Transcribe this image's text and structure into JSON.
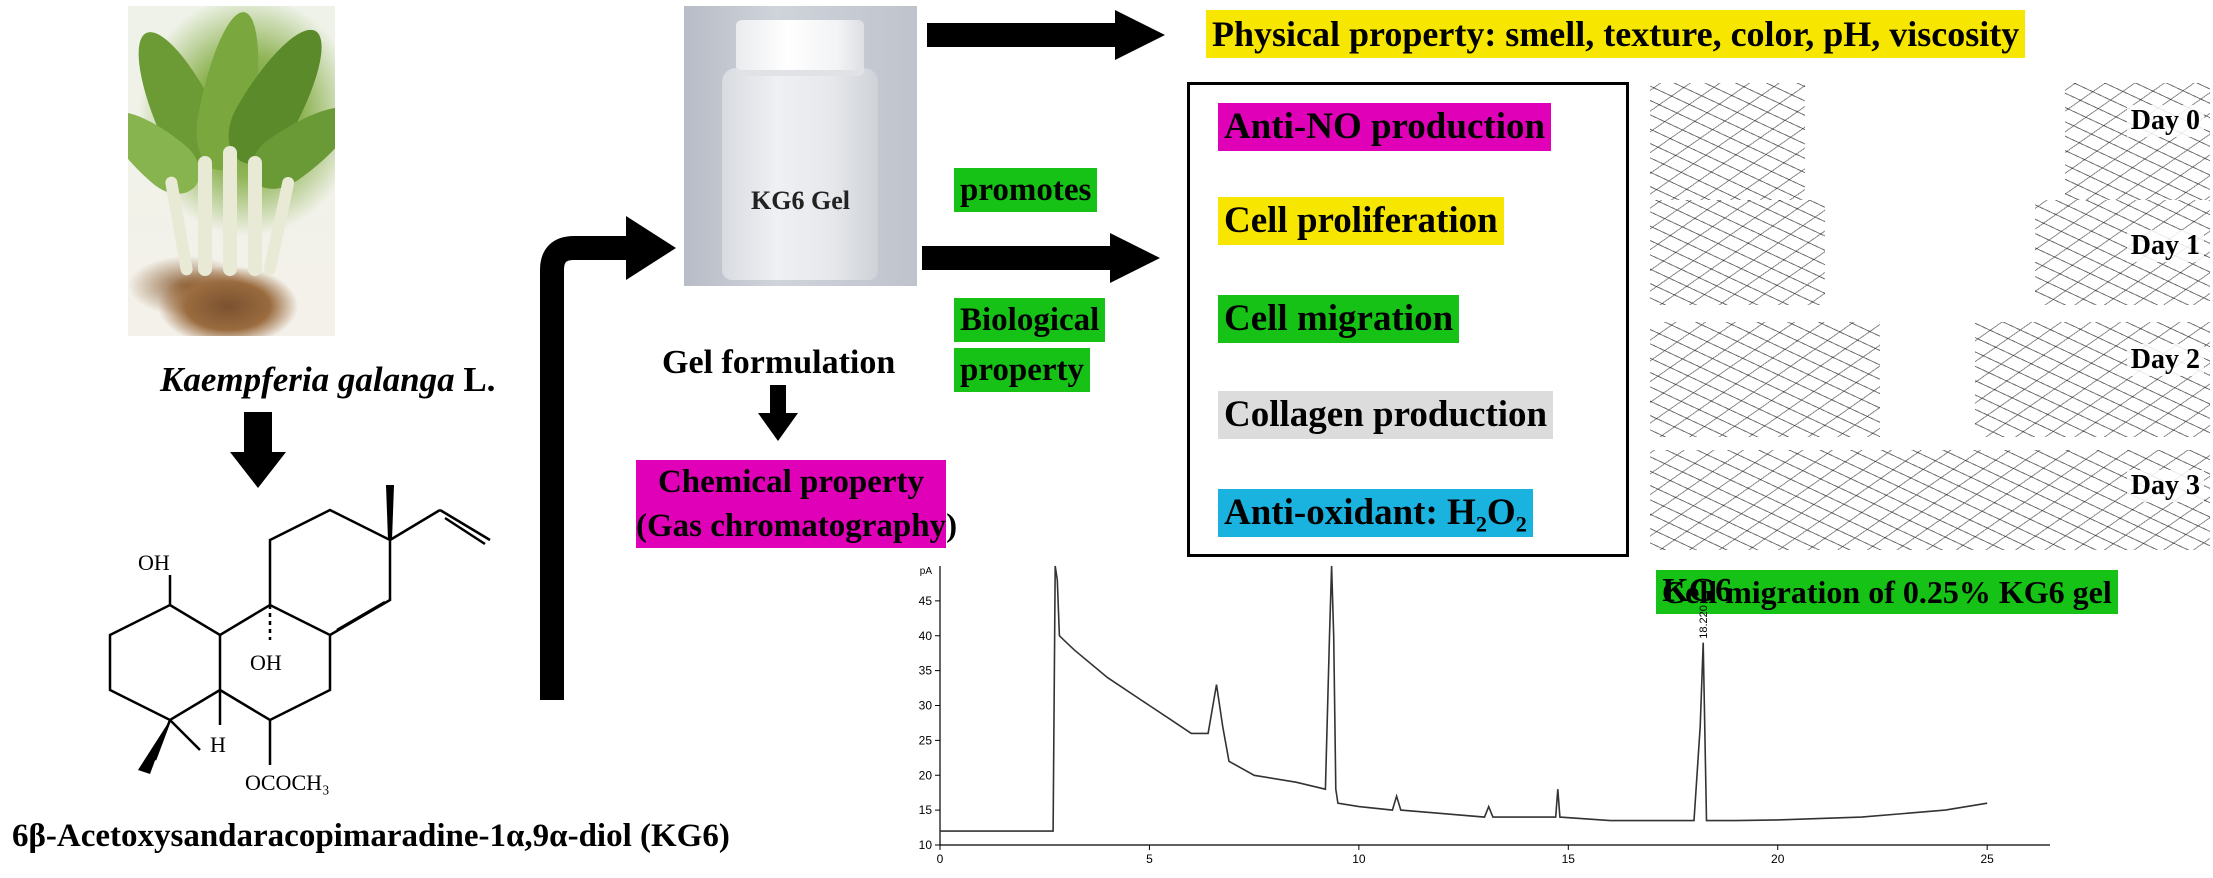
{
  "plant": {
    "name_italic": "Kaempferia galanga",
    "name_suffix": " L."
  },
  "gel": {
    "jar_label": "KG6 Gel",
    "formulation_label": "Gel formulation"
  },
  "compound": {
    "name": "6β-Acetoxysandaracopimaradine-1α,9α-diol (KG6)",
    "oh_top": "OH",
    "oh_mid": "OH",
    "h_label": "H",
    "ester": "OCOCH₃"
  },
  "labels": {
    "physical": "Physical property: smell, texture, color, pH, viscosity",
    "promotes": "promotes",
    "biological_line1": "Biological",
    "biological_line2": "property",
    "chemical_line1": "Chemical property",
    "chemical_line2": "(Gas chromatography)"
  },
  "effects": [
    {
      "label": "Anti-NO production"
    },
    {
      "label": "Cell proliferation"
    },
    {
      "label": "Cell migration"
    },
    {
      "label": "Collagen production"
    },
    {
      "label": "Anti-oxidant: H₂O₂"
    }
  ],
  "migration": {
    "days": [
      "Day 0",
      "Day 1",
      "Day 2",
      "Day 3"
    ],
    "caption": "Cell migration of 0.25% KG6 gel"
  },
  "colors": {
    "yellow": "#f7e600",
    "magenta": "#e000b8",
    "green": "#16c216",
    "gray": "#dcdcdc",
    "cyan": "#1ab3e0"
  },
  "chart_data": {
    "type": "line",
    "title": "",
    "xlabel": "",
    "ylabel": "pA",
    "xlim": [
      0,
      26
    ],
    "ylim": [
      10,
      50
    ],
    "x_ticks": [
      "0",
      "5",
      "10",
      "15",
      "20",
      "25"
    ],
    "y_ticks": [
      "10",
      "15",
      "20",
      "25",
      "30",
      "35",
      "40",
      "45"
    ],
    "peak_label": "KG6",
    "peak_retention_time": "18.220",
    "series": [
      {
        "name": "GC trace",
        "x": [
          0,
          2.7,
          2.75,
          2.8,
          2.85,
          3.2,
          4.0,
          5.0,
          5.5,
          6.0,
          6.4,
          6.6,
          6.75,
          6.9,
          7.5,
          8.5,
          9.2,
          9.3,
          9.35,
          9.4,
          9.45,
          9.5,
          10.0,
          10.8,
          10.9,
          11.0,
          12.0,
          13.0,
          13.1,
          13.2,
          14.7,
          14.75,
          14.8,
          16.0,
          17.0,
          18.0,
          18.15,
          18.22,
          18.3,
          19.0,
          20.0,
          22.0,
          24.0,
          25.0
        ],
        "y": [
          12,
          12,
          50,
          48,
          40,
          38,
          34,
          30,
          28,
          26,
          26,
          33,
          27,
          22,
          20,
          19,
          18,
          40,
          50,
          40,
          18,
          16,
          15.5,
          15,
          17,
          15,
          14.5,
          14,
          15.5,
          14,
          14,
          18,
          14,
          13.5,
          13.5,
          13.5,
          27,
          39,
          13.5,
          13.5,
          13.6,
          14,
          15,
          16
        ]
      }
    ]
  }
}
